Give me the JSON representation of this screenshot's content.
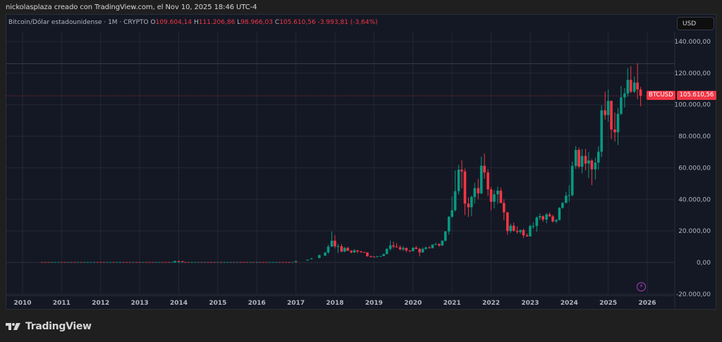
{
  "header": {
    "credit": "nickolasplaza creado con TradingView.com, el Nov 10, 2025 18:46 UTC-4"
  },
  "legend": {
    "symbol_desc": "Bitcoin/Dólar estadounidense · 1M · CRYPTO",
    "open_label": "O",
    "open": "109.604,14",
    "high_label": "H",
    "high": "111.206,86",
    "low_label": "L",
    "low": "98.966,03",
    "close_label": "C",
    "close": "105.610,56",
    "change": "-3.993,81 (-3,64%)"
  },
  "currency_button": "USD",
  "price_tag": {
    "symbol": "BTCUSD",
    "value": "105.610,56"
  },
  "price_axis": {
    "labels": [
      "140.000,00",
      "120.000,00",
      "100.000,00",
      "80.000,00",
      "60.000,00",
      "40.000,00",
      "20.000,00",
      "0,00",
      "-20.000,00"
    ]
  },
  "time_axis": {
    "labels": [
      "2010",
      "2011",
      "2012",
      "2013",
      "2014",
      "2015",
      "2016",
      "2017",
      "2018",
      "2019",
      "2020",
      "2021",
      "2022",
      "2023",
      "2024",
      "2025",
      "2026"
    ]
  },
  "footer": {
    "brand": "TradingView"
  },
  "colors": {
    "up": "#089981",
    "down": "#f23645",
    "background": "#141824",
    "grid": "#232734",
    "text": "#b2b5be",
    "accent_event": "#b33ec4"
  },
  "chart_data": {
    "type": "candlestick",
    "title": "Bitcoin/Dólar estadounidense · 1M · CRYPTO",
    "interval": "1M",
    "xlabel": "",
    "ylabel": "USD",
    "ylim": [
      -20000,
      140000
    ],
    "y_ticks": [
      140000,
      120000,
      100000,
      80000,
      60000,
      40000,
      20000,
      0,
      -20000
    ],
    "x_ticks": [
      "2010",
      "2011",
      "2012",
      "2013",
      "2014",
      "2015",
      "2016",
      "2017",
      "2018",
      "2019",
      "2020",
      "2021",
      "2022",
      "2023",
      "2024",
      "2025",
      "2026"
    ],
    "grid": true,
    "last": {
      "open": 109604.14,
      "high": 111206.86,
      "low": 98966.03,
      "close": 105610.56,
      "change": -3993.81,
      "change_pct": -3.64
    },
    "current_price_line": 105610.56,
    "series_note": "Monthly OHLC approximated from the chart, [year_fraction, open, high, low, close]",
    "candles": [
      [
        2013.9,
        200,
        1100,
        200,
        950
      ],
      [
        2014.0,
        950,
        1150,
        750,
        800
      ],
      [
        2014.1,
        800,
        900,
        400,
        550
      ],
      [
        2017.0,
        1000,
        1200,
        900,
        1000
      ],
      [
        2017.3,
        1300,
        1800,
        1200,
        1800
      ],
      [
        2017.4,
        2300,
        2900,
        1900,
        2500
      ],
      [
        2017.6,
        2800,
        4900,
        2700,
        4700
      ],
      [
        2017.75,
        4300,
        6400,
        4100,
        6400
      ],
      [
        2017.83,
        6400,
        11300,
        5500,
        10000
      ],
      [
        2017.92,
        10000,
        19700,
        10000,
        13800
      ],
      [
        2018.0,
        13800,
        17200,
        9000,
        10200
      ],
      [
        2018.08,
        10200,
        11800,
        6000,
        10300
      ],
      [
        2018.17,
        10300,
        11700,
        6600,
        6900
      ],
      [
        2018.25,
        6900,
        9800,
        6500,
        9200
      ],
      [
        2018.33,
        9200,
        9900,
        7200,
        7500
      ],
      [
        2018.42,
        7500,
        7800,
        5800,
        6400
      ],
      [
        2018.5,
        6400,
        8500,
        6100,
        7700
      ],
      [
        2018.58,
        7700,
        7800,
        5900,
        7000
      ],
      [
        2018.67,
        7000,
        7400,
        6100,
        6600
      ],
      [
        2018.75,
        6600,
        6700,
        6200,
        6300
      ],
      [
        2018.83,
        6300,
        6500,
        3600,
        4000
      ],
      [
        2018.92,
        4000,
        4300,
        3200,
        3700
      ],
      [
        2019.0,
        3700,
        4100,
        3400,
        3400
      ],
      [
        2019.08,
        3400,
        4200,
        3400,
        3800
      ],
      [
        2019.17,
        3800,
        4100,
        3800,
        4100
      ],
      [
        2019.25,
        4100,
        5600,
        4100,
        5300
      ],
      [
        2019.33,
        5300,
        9000,
        5300,
        8600
      ],
      [
        2019.42,
        8600,
        13800,
        7400,
        10800
      ],
      [
        2019.5,
        10800,
        13200,
        9000,
        10100
      ],
      [
        2019.58,
        10100,
        12300,
        9400,
        9600
      ],
      [
        2019.67,
        9600,
        10900,
        7700,
        8300
      ],
      [
        2019.75,
        8300,
        10400,
        7300,
        9200
      ],
      [
        2019.83,
        9200,
        9500,
        6500,
        7600
      ],
      [
        2019.92,
        7600,
        7800,
        6400,
        7200
      ],
      [
        2020.0,
        7200,
        9600,
        6900,
        9400
      ],
      [
        2020.08,
        9400,
        10500,
        8500,
        8600
      ],
      [
        2020.17,
        8600,
        9200,
        3900,
        6400
      ],
      [
        2020.25,
        6400,
        9500,
        6200,
        8600
      ],
      [
        2020.33,
        8600,
        10100,
        8100,
        9500
      ],
      [
        2020.42,
        9500,
        10400,
        8900,
        9100
      ],
      [
        2020.5,
        9100,
        11500,
        9000,
        11300
      ],
      [
        2020.58,
        11300,
        12500,
        11000,
        11700
      ],
      [
        2020.67,
        11700,
        12100,
        9900,
        10800
      ],
      [
        2020.75,
        10800,
        14000,
        10400,
        13800
      ],
      [
        2020.83,
        13800,
        19900,
        13200,
        19700
      ],
      [
        2020.92,
        19700,
        29300,
        17600,
        29000
      ],
      [
        2021.0,
        29000,
        41900,
        28100,
        33100
      ],
      [
        2021.08,
        33100,
        58300,
        32300,
        45200
      ],
      [
        2021.17,
        45200,
        61800,
        43000,
        58800
      ],
      [
        2021.25,
        58800,
        64800,
        47000,
        57700
      ],
      [
        2021.33,
        57700,
        59500,
        30000,
        37300
      ],
      [
        2021.42,
        37300,
        41300,
        28800,
        35000
      ],
      [
        2021.5,
        35000,
        42400,
        29300,
        41500
      ],
      [
        2021.58,
        41500,
        50500,
        37300,
        47100
      ],
      [
        2021.67,
        47100,
        52900,
        40000,
        43800
      ],
      [
        2021.75,
        43800,
        67000,
        43300,
        61300
      ],
      [
        2021.83,
        61300,
        69000,
        53000,
        57000
      ],
      [
        2021.92,
        57000,
        59100,
        42000,
        46300
      ],
      [
        2022.0,
        46300,
        47900,
        33000,
        38500
      ],
      [
        2022.08,
        38500,
        45800,
        34300,
        43200
      ],
      [
        2022.17,
        43200,
        48200,
        37200,
        45500
      ],
      [
        2022.25,
        45500,
        47400,
        37600,
        37700
      ],
      [
        2022.33,
        37700,
        40000,
        26700,
        31800
      ],
      [
        2022.42,
        31800,
        31900,
        17600,
        19900
      ],
      [
        2022.5,
        19900,
        24600,
        18800,
        23300
      ],
      [
        2022.58,
        23300,
        25200,
        19600,
        20000
      ],
      [
        2022.67,
        20000,
        22800,
        18200,
        19400
      ],
      [
        2022.75,
        19400,
        20900,
        18200,
        20500
      ],
      [
        2022.83,
        20500,
        21500,
        15500,
        17200
      ],
      [
        2022.92,
        17200,
        18400,
        16300,
        16500
      ],
      [
        2023.0,
        16500,
        23900,
        16500,
        23100
      ],
      [
        2023.08,
        23100,
        25300,
        21400,
        23100
      ],
      [
        2023.17,
        23100,
        29200,
        19500,
        28500
      ],
      [
        2023.25,
        28500,
        31000,
        26900,
        29300
      ],
      [
        2023.33,
        29300,
        29900,
        25800,
        27200
      ],
      [
        2023.42,
        27200,
        31400,
        24800,
        30500
      ],
      [
        2023.5,
        30500,
        31800,
        28900,
        29200
      ],
      [
        2023.58,
        29200,
        30200,
        25300,
        26000
      ],
      [
        2023.67,
        26000,
        27500,
        24900,
        27000
      ],
      [
        2023.75,
        27000,
        35000,
        26600,
        34600
      ],
      [
        2023.83,
        34600,
        38400,
        34100,
        37700
      ],
      [
        2023.92,
        37700,
        44700,
        37600,
        42300
      ],
      [
        2024.0,
        42300,
        48900,
        38500,
        42600
      ],
      [
        2024.08,
        42600,
        64000,
        41900,
        61200
      ],
      [
        2024.17,
        61200,
        73800,
        59300,
        71300
      ],
      [
        2024.25,
        71300,
        72800,
        59600,
        60700
      ],
      [
        2024.33,
        60700,
        71900,
        56500,
        67500
      ],
      [
        2024.42,
        67500,
        71900,
        58400,
        62700
      ],
      [
        2024.5,
        62700,
        70000,
        53500,
        64600
      ],
      [
        2024.58,
        64600,
        65600,
        49000,
        59000
      ],
      [
        2024.67,
        59000,
        66500,
        52600,
        63300
      ],
      [
        2024.75,
        63300,
        73600,
        58900,
        70200
      ],
      [
        2024.83,
        70200,
        99600,
        66800,
        96400
      ],
      [
        2024.92,
        96400,
        108300,
        90500,
        93400
      ],
      [
        2025.0,
        93400,
        109600,
        89200,
        102400
      ],
      [
        2025.08,
        102400,
        102500,
        78200,
        84300
      ],
      [
        2025.17,
        84300,
        95000,
        76600,
        82500
      ],
      [
        2025.25,
        82500,
        97900,
        74400,
        94200
      ],
      [
        2025.33,
        94200,
        111900,
        93400,
        104600
      ],
      [
        2025.42,
        104600,
        110500,
        98200,
        107100
      ],
      [
        2025.5,
        107100,
        123200,
        105100,
        115700
      ],
      [
        2025.58,
        115700,
        124400,
        107300,
        108200
      ],
      [
        2025.67,
        108200,
        117900,
        107300,
        114000
      ],
      [
        2025.75,
        114000,
        126200,
        103500,
        109600
      ],
      [
        2025.83,
        109604.14,
        111206.86,
        98966.03,
        105610.56
      ]
    ]
  }
}
